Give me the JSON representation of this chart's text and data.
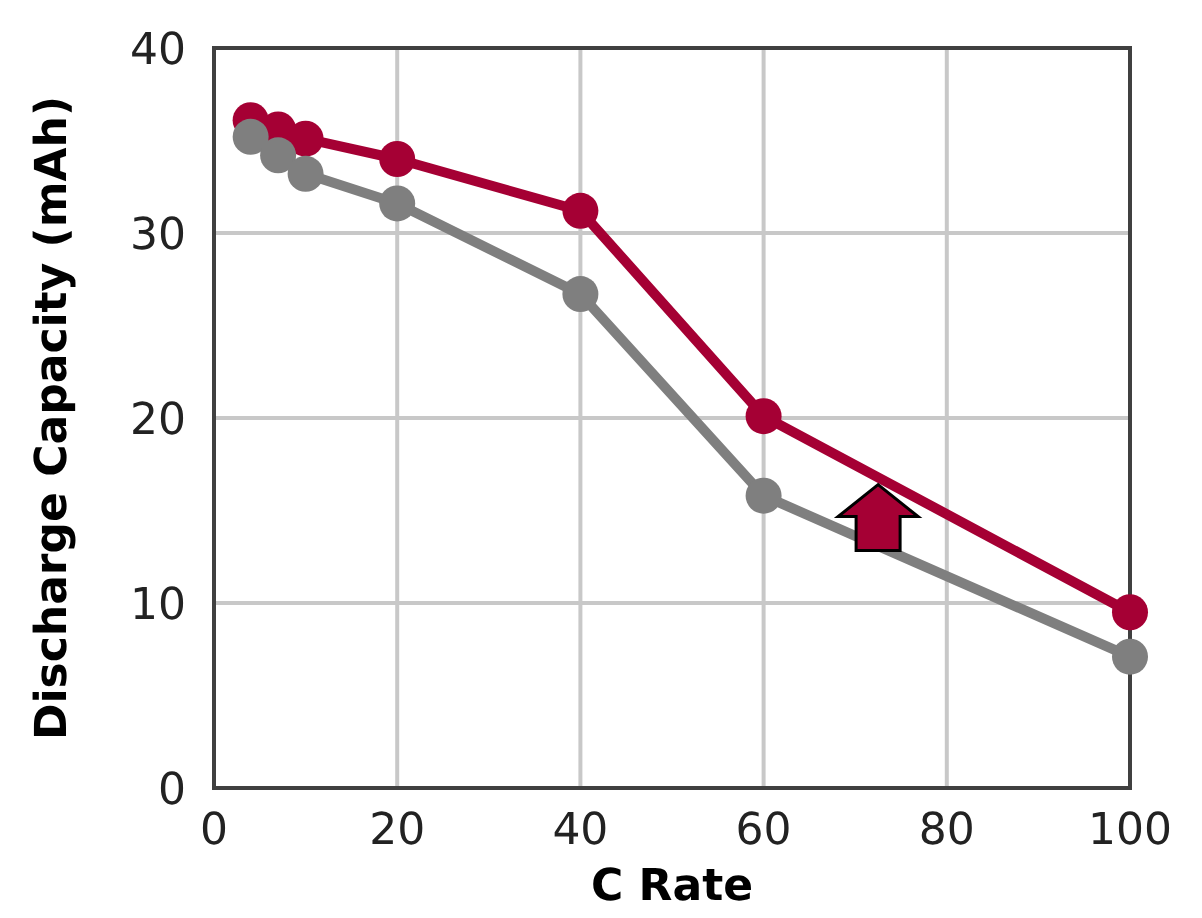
{
  "chart_data": {
    "type": "line",
    "xlabel": "C Rate",
    "ylabel": "Discharge Capacity (mAh)",
    "xlim": [
      0,
      100
    ],
    "xticks": [
      0,
      20,
      40,
      60,
      80,
      100
    ],
    "ylim": [
      0,
      40
    ],
    "yticks": [
      0,
      10,
      20,
      30,
      40
    ],
    "grid": true,
    "marker": "circle",
    "line_style": "solid",
    "series": [
      {
        "color": "#a50034",
        "x": [
          4,
          7,
          10,
          20,
          40,
          60,
          100
        ],
        "values": [
          36.1,
          35.6,
          35.1,
          34.0,
          31.2,
          20.1,
          9.5
        ]
      },
      {
        "color": "#7f7f7f",
        "x": [
          4,
          7,
          10,
          20,
          40,
          60,
          100
        ],
        "values": [
          35.2,
          34.2,
          33.2,
          31.6,
          26.7,
          15.8,
          7.1
        ]
      }
    ]
  }
}
